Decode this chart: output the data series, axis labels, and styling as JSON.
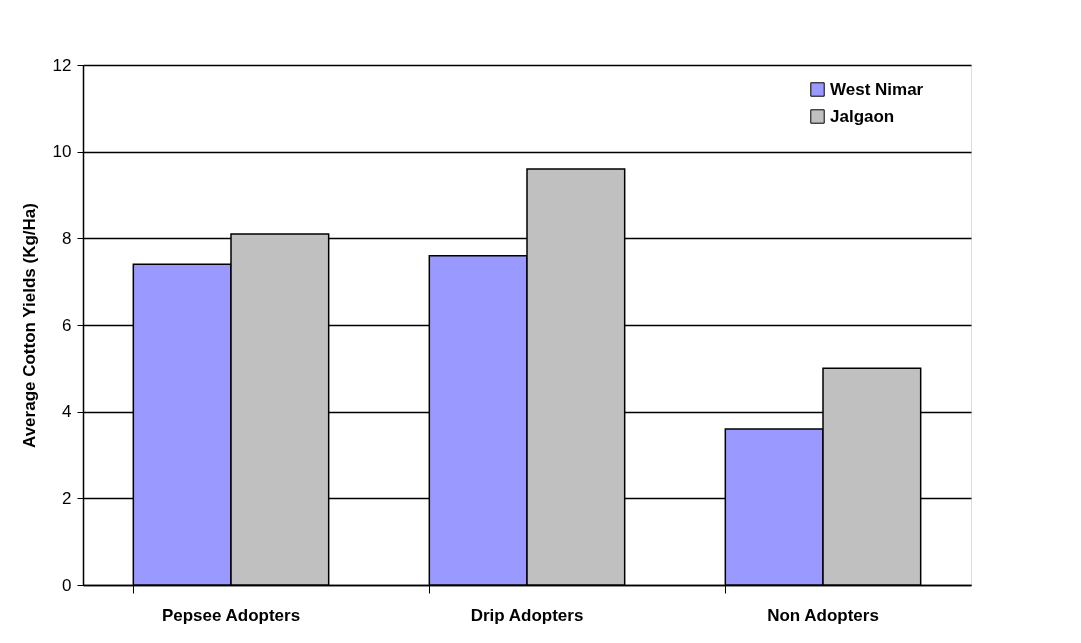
{
  "chart_data": {
    "type": "bar",
    "ylabel": "Average Cotton Yields (Kg/Ha)",
    "categories": [
      "Pepsee Adopters",
      "Drip Adopters",
      "Non Adopters"
    ],
    "series": [
      {
        "name": "West Nimar",
        "color": "#9999ff",
        "values": [
          7.4,
          7.6,
          3.6
        ]
      },
      {
        "name": "Jalgaon",
        "color": "#c0c0c0",
        "values": [
          8.1,
          9.6,
          5.0
        ]
      }
    ],
    "ylim": [
      0,
      12
    ],
    "yticks": [
      0,
      2,
      4,
      6,
      8,
      10,
      12
    ],
    "grid": "y",
    "legend": "top right"
  }
}
